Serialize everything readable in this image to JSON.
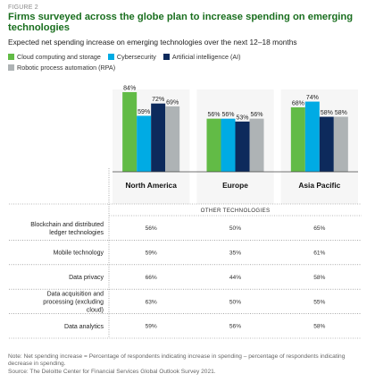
{
  "figure_label": "FIGURE 2",
  "title": "Firms surveyed across the globe plan to increase spending on emerging technologies",
  "subtitle": "Expected net spending increase on emerging technologies over the next 12–18 months",
  "colors": {
    "Cloud computing and storage": "#62bb46",
    "Cybersecurity": "#00abe4",
    "Artificial intelligence (AI)": "#0d2a5c",
    "Robotic process automation (RPA)": "#aeb3b5"
  },
  "chart_data": {
    "type": "bar",
    "categories": [
      "North America",
      "Europe",
      "Asia Pacific"
    ],
    "series": [
      {
        "name": "Cloud computing and storage",
        "values": [
          84,
          56,
          68
        ]
      },
      {
        "name": "Cybersecurity",
        "values": [
          59,
          56,
          74
        ]
      },
      {
        "name": "Artificial intelligence (AI)",
        "values": [
          72,
          53,
          58
        ]
      },
      {
        "name": "Robotic process automation (RPA)",
        "values": [
          69,
          56,
          58
        ]
      }
    ],
    "ylim": [
      0,
      100
    ],
    "grid": false,
    "legend_position": "top-left",
    "value_suffix": "%"
  },
  "table": {
    "header": "OTHER TECHNOLOGIES",
    "rows": [
      {
        "label": "Blockchain and distributed ledger technologies",
        "values": [
          "56%",
          "50%",
          "65%"
        ]
      },
      {
        "label": "Mobile technology",
        "values": [
          "59%",
          "35%",
          "61%"
        ]
      },
      {
        "label": "Data privacy",
        "values": [
          "66%",
          "44%",
          "58%"
        ]
      },
      {
        "label": "Data acquisition and processing (excluding cloud)",
        "values": [
          "63%",
          "50%",
          "55%"
        ]
      },
      {
        "label": "Data analytics",
        "values": [
          "59%",
          "56%",
          "58%"
        ]
      }
    ]
  },
  "note": "Note: Net spending increase = Percentage of respondents indicating increase in spending – percentage of respondents indicating decrease in spending.",
  "source": "Source: The Deloitte Center for Financial Services Global Outlook Survey 2021."
}
